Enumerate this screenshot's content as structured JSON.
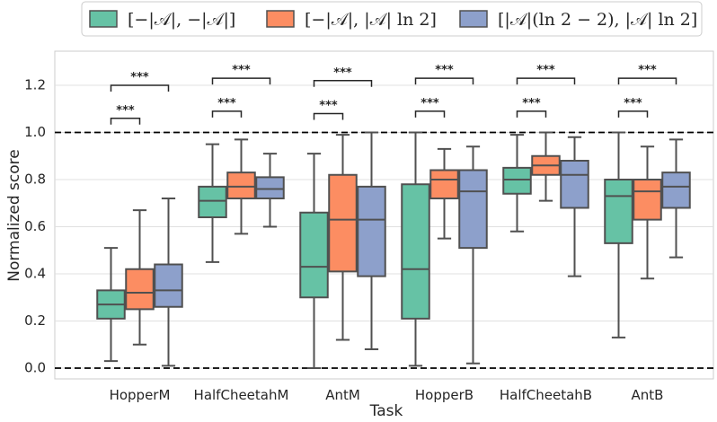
{
  "chart_data": {
    "type": "boxplot",
    "xlabel": "Task",
    "ylabel": "Normalized score",
    "ylim": [
      -0.05,
      1.33
    ],
    "yticks": [
      0.0,
      0.2,
      0.4,
      0.6,
      0.8,
      1.0,
      1.2
    ],
    "ytick_labels": [
      "0.0",
      "0.2",
      "0.4",
      "0.6",
      "0.8",
      "1.0",
      "1.2"
    ],
    "reference_lines": [
      0.0,
      1.0
    ],
    "categories": [
      "HopperM",
      "HalfCheetahM",
      "AntM",
      "HopperB",
      "HalfCheetahB",
      "AntB"
    ],
    "series": [
      {
        "name": "[−|𝒜|, −|𝒜|]",
        "color": "#66c2a5",
        "boxes": [
          {
            "whislo": 0.03,
            "q1": 0.21,
            "med": 0.27,
            "q3": 0.33,
            "whishi": 0.51
          },
          {
            "whislo": 0.45,
            "q1": 0.64,
            "med": 0.71,
            "q3": 0.77,
            "whishi": 0.95
          },
          {
            "whislo": 0.0,
            "q1": 0.3,
            "med": 0.43,
            "q3": 0.66,
            "whishi": 0.91
          },
          {
            "whislo": 0.01,
            "q1": 0.21,
            "med": 0.42,
            "q3": 0.78,
            "whishi": 1.0
          },
          {
            "whislo": 0.58,
            "q1": 0.74,
            "med": 0.8,
            "q3": 0.85,
            "whishi": 0.99
          },
          {
            "whislo": 0.13,
            "q1": 0.53,
            "med": 0.73,
            "q3": 0.8,
            "whishi": 1.0
          }
        ]
      },
      {
        "name": "[−|𝒜|, |𝒜| ln 2]",
        "color": "#fc8d62",
        "boxes": [
          {
            "whislo": 0.1,
            "q1": 0.25,
            "med": 0.32,
            "q3": 0.42,
            "whishi": 0.67
          },
          {
            "whislo": 0.57,
            "q1": 0.72,
            "med": 0.77,
            "q3": 0.83,
            "whishi": 0.97
          },
          {
            "whislo": 0.12,
            "q1": 0.41,
            "med": 0.63,
            "q3": 0.82,
            "whishi": 0.99
          },
          {
            "whislo": 0.55,
            "q1": 0.72,
            "med": 0.8,
            "q3": 0.84,
            "whishi": 0.93
          },
          {
            "whislo": 0.71,
            "q1": 0.82,
            "med": 0.86,
            "q3": 0.9,
            "whishi": 1.0
          },
          {
            "whislo": 0.38,
            "q1": 0.63,
            "med": 0.75,
            "q3": 0.8,
            "whishi": 0.94
          }
        ]
      },
      {
        "name": "[|𝒜|(ln 2 − 2), |𝒜| ln 2]",
        "color": "#8da0cb",
        "boxes": [
          {
            "whislo": 0.01,
            "q1": 0.26,
            "med": 0.33,
            "q3": 0.44,
            "whishi": 0.72
          },
          {
            "whislo": 0.6,
            "q1": 0.72,
            "med": 0.76,
            "q3": 0.81,
            "whishi": 0.91
          },
          {
            "whislo": 0.08,
            "q1": 0.39,
            "med": 0.63,
            "q3": 0.77,
            "whishi": 1.0
          },
          {
            "whislo": 0.02,
            "q1": 0.51,
            "med": 0.75,
            "q3": 0.84,
            "whishi": 0.94
          },
          {
            "whislo": 0.39,
            "q1": 0.68,
            "med": 0.82,
            "q3": 0.88,
            "whishi": 0.98
          },
          {
            "whislo": 0.47,
            "q1": 0.68,
            "med": 0.77,
            "q3": 0.83,
            "whishi": 0.97
          }
        ]
      }
    ],
    "significance": [
      {
        "category": "HopperM",
        "inner": "***",
        "outer": "***",
        "inner_level": 1.06,
        "outer_level": 1.2
      },
      {
        "category": "HalfCheetahM",
        "inner": "***",
        "outer": "***",
        "inner_level": 1.09,
        "outer_level": 1.23
      },
      {
        "category": "AntM",
        "inner": "***",
        "outer": "***",
        "inner_level": 1.08,
        "outer_level": 1.22
      },
      {
        "category": "HopperB",
        "inner": "***",
        "outer": "***",
        "inner_level": 1.09,
        "outer_level": 1.23
      },
      {
        "category": "HalfCheetahB",
        "inner": "***",
        "outer": "***",
        "inner_level": 1.09,
        "outer_level": 1.23
      },
      {
        "category": "AntB",
        "inner": "***",
        "outer": "***",
        "inner_level": 1.09,
        "outer_level": 1.23
      }
    ],
    "legend_position": "top-center"
  }
}
